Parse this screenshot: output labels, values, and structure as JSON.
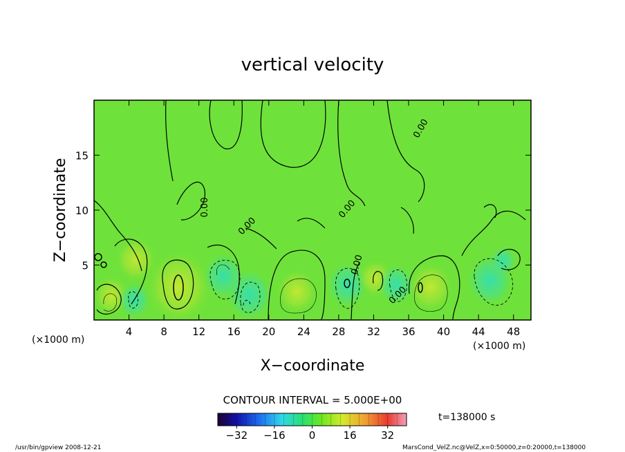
{
  "chart_data": {
    "type": "heatmap",
    "title": "vertical velocity",
    "xlabel": "X−coordinate",
    "ylabel": "Z−coordinate",
    "x_unit_label": "(×1000 m)",
    "z_unit_label": "(×1000 m)",
    "xlim": [
      0,
      50
    ],
    "ylim": [
      0,
      20
    ],
    "x_ticks": [
      4,
      8,
      12,
      16,
      20,
      24,
      28,
      32,
      36,
      40,
      44,
      48
    ],
    "y_ticks": [
      5,
      10,
      15
    ],
    "contour_interval_text": "CONTOUR INTERVAL = 5.000E+00",
    "contour_zero_label": "0.00",
    "time_label": "t=138000 s",
    "colorbar": {
      "min": -40,
      "max": 40,
      "tick_values": [
        -32,
        -16,
        0,
        16,
        32
      ],
      "tick_labels": [
        "−32",
        "−16",
        "0",
        "16",
        "32"
      ]
    },
    "footer_left": "/usr/bin/gpview   2008-12-21",
    "footer_right": "MarsCond_VelZ.nc@VelZ,x=0:50000,z=0:20000,t=138000",
    "features": [
      {
        "x": 2.0,
        "z": 2.2,
        "value": 8
      },
      {
        "x": 4.8,
        "z": 5.5,
        "value": 10
      },
      {
        "x": 4.6,
        "z": 1.8,
        "value": -6
      },
      {
        "x": 9.7,
        "z": 3.0,
        "value": 22
      },
      {
        "x": 14.8,
        "z": 4.0,
        "value": -10
      },
      {
        "x": 17.8,
        "z": 2.3,
        "value": -12
      },
      {
        "x": 23.2,
        "z": 2.6,
        "value": 10
      },
      {
        "x": 29.0,
        "z": 3.2,
        "value": -10
      },
      {
        "x": 32.2,
        "z": 3.8,
        "value": 7
      },
      {
        "x": 34.6,
        "z": 3.2,
        "value": -8
      },
      {
        "x": 38.5,
        "z": 3.0,
        "value": 12
      },
      {
        "x": 45.3,
        "z": 3.6,
        "value": -12
      },
      {
        "x": 46.8,
        "z": 5.4,
        "value": -3
      }
    ]
  }
}
